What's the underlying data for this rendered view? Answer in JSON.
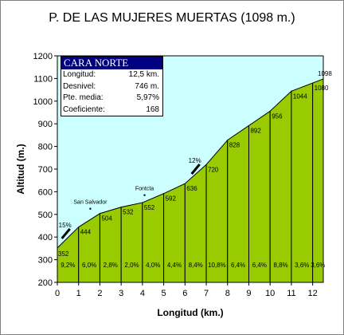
{
  "chart_data": {
    "type": "area",
    "title": "P. DE LAS MUJERES MUERTAS (1098 m.)",
    "xlabel": "Longitud (km.)",
    "ylabel": "Altitud (m.)",
    "xlim": [
      0,
      12.5
    ],
    "ylim": [
      200,
      1200
    ],
    "x_ticks": [
      0,
      1,
      2,
      3,
      4,
      5,
      6,
      7,
      8,
      9,
      10,
      11,
      12
    ],
    "y_ticks": [
      200,
      300,
      400,
      500,
      600,
      700,
      800,
      900,
      1000,
      1100,
      1200
    ],
    "x": [
      0,
      1,
      2,
      3,
      4,
      5,
      6,
      7,
      8,
      9,
      10,
      11,
      12,
      12.5
    ],
    "altitudes": [
      352,
      444,
      504,
      532,
      552,
      592,
      636,
      720,
      828,
      892,
      956,
      1044,
      1080,
      1098
    ],
    "altitude_labels": [
      "352",
      "444",
      "504",
      "532",
      "552",
      "592",
      "636",
      "720",
      "828",
      "892",
      "956",
      "1044",
      "1080",
      "1098"
    ],
    "gradients": [
      "9,2%",
      "6,0%",
      "2,8%",
      "2,0%",
      "4,0%",
      "4,4%",
      "8,4%",
      "10,8%",
      "6,4%",
      "6,4%",
      "8,8%",
      "3,6%",
      "3,6%"
    ],
    "max_gradients": [
      {
        "label": "15%",
        "x": 0.4,
        "y": 415
      },
      {
        "label": "12%",
        "x": 6.5,
        "y": 700
      }
    ],
    "points_of_interest": [
      {
        "name": "San Salvador",
        "x": 1.55,
        "y": 525
      },
      {
        "name": "Fontcta",
        "x": 4.1,
        "y": 585
      }
    ],
    "grid": false,
    "colors": {
      "fill": "#99cc00",
      "sky": "#ccffff",
      "line": "#000000"
    }
  },
  "info": {
    "header": "CARA NORTE",
    "rows": [
      {
        "label": "Longitud:",
        "value": "12,5 km."
      },
      {
        "label": "Desnivel:",
        "value": "746 m."
      },
      {
        "label": "Pte. media:",
        "value": "5,97%"
      },
      {
        "label": "Coeficiente:",
        "value": "168"
      }
    ]
  }
}
